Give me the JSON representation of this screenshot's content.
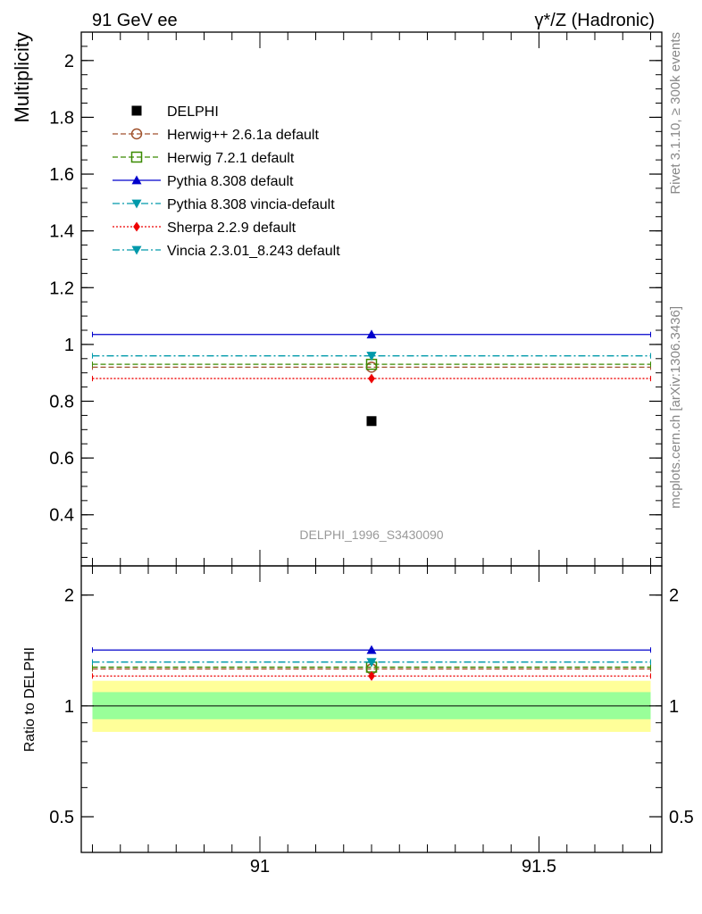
{
  "header": {
    "left": "91 GeV ee",
    "right": "γ*/Z (Hadronic)"
  },
  "side_labels": {
    "rivet": "Rivet 3.1.10, ≥ 300k events",
    "mcplots": "mcplots.cern.ch [arXiv:1306.3436]"
  },
  "watermark": "DELPHI_1996_S3430090",
  "colors": {
    "data_band_inner": "#99ff99",
    "data_band_outer": "#ffff99"
  },
  "chart_data": [
    {
      "type": "line",
      "panel": "main",
      "ylabel": "Multiplicity",
      "xlim": [
        90.68,
        91.72
      ],
      "ylim": [
        0.22,
        2.1
      ],
      "yticks_major": [
        "0.4",
        "0.6",
        "0.8",
        "1",
        "1.2",
        "1.4",
        "1.6",
        "1.8",
        "2"
      ],
      "legend_position": "top-left",
      "data_point": {
        "name": "DELPHI",
        "x": 91.2,
        "y": 0.73,
        "color": "#000000"
      },
      "series": [
        {
          "name": "Herwig++ 2.6.1a default",
          "y": 0.92,
          "color": "#a0522d",
          "dash": "dashed",
          "marker": "circle-open"
        },
        {
          "name": "Herwig 7.2.1 default",
          "y": 0.93,
          "color": "#3a8a00",
          "dash": "dashed",
          "marker": "square-open"
        },
        {
          "name": "Pythia 8.308 default",
          "y": 1.035,
          "color": "#0000cc",
          "dash": "solid",
          "marker": "triangle-up"
        },
        {
          "name": "Pythia 8.308 vincia-default",
          "y": 0.96,
          "color": "#0099aa",
          "dash": "dashdot",
          "marker": "triangle-down"
        },
        {
          "name": "Sherpa 2.2.9 default",
          "y": 0.88,
          "color": "#ee0000",
          "dash": "dotted",
          "marker": "diamond"
        },
        {
          "name": "Vincia 2.3.01_8.243 default",
          "y": 0.96,
          "color": "#0099aa",
          "dash": "dashdot",
          "marker": "triangle-down"
        }
      ]
    },
    {
      "type": "line",
      "panel": "ratio",
      "ylabel": "Ratio to DELPHI",
      "yscale": "log",
      "xlim": [
        90.68,
        91.72
      ],
      "ylim": [
        0.4,
        2.4
      ],
      "xticks_major": [
        "91",
        "91.5"
      ],
      "yticks_major": [
        "0.5",
        "1",
        "2"
      ],
      "band_inner": [
        0.92,
        1.09
      ],
      "band_outer": [
        0.85,
        1.17
      ],
      "series": [
        {
          "name": "Herwig++ 2.6.1a default",
          "y": 1.26
        },
        {
          "name": "Herwig 7.2.1 default",
          "y": 1.274
        },
        {
          "name": "Pythia 8.308 default",
          "y": 1.418
        },
        {
          "name": "Pythia 8.308 vincia-default",
          "y": 1.315
        },
        {
          "name": "Sherpa 2.2.9 default",
          "y": 1.205
        },
        {
          "name": "Vincia 2.3.01_8.243 default",
          "y": 1.315
        }
      ]
    }
  ]
}
